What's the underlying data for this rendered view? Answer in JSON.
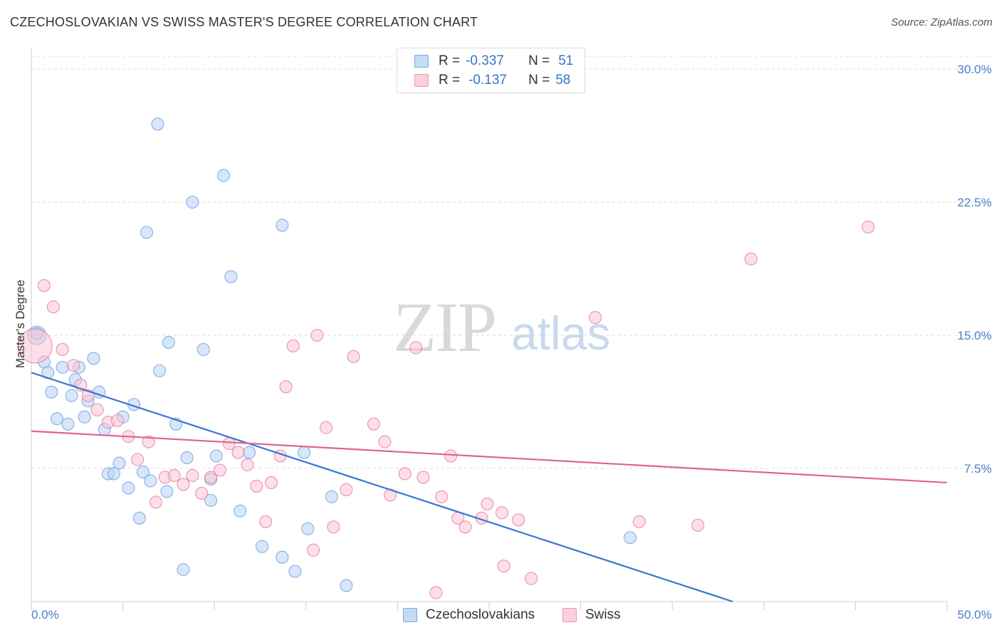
{
  "title": "CZECHOSLOVAKIAN VS SWISS MASTER'S DEGREE CORRELATION CHART",
  "source": "Source: ZipAtlas.com",
  "watermark": {
    "zip": "ZIP",
    "atlas": "atlas"
  },
  "legend_top": {
    "rows": [
      {
        "r_label": "R =",
        "r_value": "-0.337",
        "n_label": "N =",
        "n_value": "51",
        "color": "#aac8f0"
      },
      {
        "r_label": "R =",
        "r_value": "-0.137",
        "n_label": "N =",
        "n_value": "58",
        "color": "#f8bcd0"
      }
    ]
  },
  "legend_bottom": [
    {
      "label": "Czechoslovakians",
      "color": "#aac8f0"
    },
    {
      "label": "Swiss",
      "color": "#f8bcd0"
    }
  ],
  "chart_data": {
    "type": "scatter",
    "title": "CZECHOSLOVAKIAN VS SWISS MASTER'S DEGREE CORRELATION CHART",
    "xlabel": "",
    "ylabel": "Master's Degree",
    "xlim": [
      0,
      50
    ],
    "ylim": [
      0,
      30
    ],
    "x_tick_labels": [
      "0.0%",
      "50.0%"
    ],
    "y_ticks": [
      7.5,
      15.0,
      22.5,
      30.0
    ],
    "y_tick_labels": [
      "7.5%",
      "15.0%",
      "22.5%",
      "30.0%"
    ],
    "grid": true,
    "legend_position": "top-center",
    "series": [
      {
        "name": "Czechoslovakians",
        "color": "#6a9fe0",
        "fill": "#b8d2f4",
        "trend": {
          "x": [
            0,
            38.3
          ],
          "y": [
            12.9,
            0
          ]
        },
        "points": [
          [
            0.3,
            15.0
          ],
          [
            0.7,
            13.5
          ],
          [
            0.9,
            12.9
          ],
          [
            1.1,
            11.8
          ],
          [
            1.4,
            10.3
          ],
          [
            1.7,
            13.2
          ],
          [
            2.0,
            10.0
          ],
          [
            2.2,
            11.6
          ],
          [
            2.4,
            12.5
          ],
          [
            2.6,
            13.2
          ],
          [
            2.9,
            10.4
          ],
          [
            3.1,
            11.3
          ],
          [
            3.4,
            13.7
          ],
          [
            3.7,
            11.8
          ],
          [
            4.0,
            9.7
          ],
          [
            4.2,
            7.2
          ],
          [
            4.5,
            7.2
          ],
          [
            4.8,
            7.8
          ],
          [
            5.0,
            10.4
          ],
          [
            5.3,
            6.4
          ],
          [
            5.6,
            11.1
          ],
          [
            5.9,
            4.7
          ],
          [
            6.1,
            7.3
          ],
          [
            6.3,
            20.8
          ],
          [
            6.5,
            6.8
          ],
          [
            6.9,
            26.9
          ],
          [
            7.0,
            13.0
          ],
          [
            7.4,
            6.2
          ],
          [
            7.5,
            14.6
          ],
          [
            7.9,
            10.0
          ],
          [
            8.3,
            1.8
          ],
          [
            8.5,
            8.1
          ],
          [
            8.8,
            22.5
          ],
          [
            9.4,
            14.2
          ],
          [
            9.8,
            6.9
          ],
          [
            9.8,
            5.7
          ],
          [
            10.1,
            8.2
          ],
          [
            10.5,
            24.0
          ],
          [
            10.9,
            18.3
          ],
          [
            11.4,
            5.1
          ],
          [
            11.9,
            8.4
          ],
          [
            12.6,
            3.1
          ],
          [
            13.7,
            2.5
          ],
          [
            13.7,
            21.2
          ],
          [
            14.4,
            1.7
          ],
          [
            14.9,
            8.4
          ],
          [
            15.1,
            4.1
          ],
          [
            16.4,
            5.9
          ],
          [
            17.2,
            0.9
          ],
          [
            32.7,
            3.6
          ],
          [
            0.3,
            15.1
          ]
        ]
      },
      {
        "name": "Swiss",
        "color": "#e8789c",
        "fill": "#f9c4d6",
        "trend": {
          "x": [
            0,
            50
          ],
          "y": [
            9.6,
            6.7
          ]
        },
        "points": [
          [
            0.2,
            14.4
          ],
          [
            0.7,
            17.8
          ],
          [
            1.2,
            16.6
          ],
          [
            1.7,
            14.2
          ],
          [
            2.3,
            13.3
          ],
          [
            2.7,
            12.2
          ],
          [
            3.1,
            11.6
          ],
          [
            3.6,
            10.8
          ],
          [
            4.2,
            10.1
          ],
          [
            4.7,
            10.2
          ],
          [
            5.3,
            9.3
          ],
          [
            5.8,
            8.0
          ],
          [
            6.4,
            9.0
          ],
          [
            6.8,
            5.6
          ],
          [
            7.3,
            7.0
          ],
          [
            7.8,
            7.1
          ],
          [
            8.3,
            6.6
          ],
          [
            8.8,
            7.1
          ],
          [
            9.3,
            6.1
          ],
          [
            9.8,
            7.0
          ],
          [
            10.3,
            7.4
          ],
          [
            10.8,
            8.9
          ],
          [
            11.3,
            8.4
          ],
          [
            11.8,
            7.7
          ],
          [
            12.3,
            6.5
          ],
          [
            12.8,
            4.5
          ],
          [
            13.1,
            6.7
          ],
          [
            13.6,
            8.2
          ],
          [
            13.9,
            12.1
          ],
          [
            14.3,
            14.4
          ],
          [
            15.4,
            2.9
          ],
          [
            15.6,
            15.0
          ],
          [
            16.1,
            9.8
          ],
          [
            16.5,
            4.2
          ],
          [
            17.2,
            6.3
          ],
          [
            17.6,
            13.8
          ],
          [
            18.7,
            10.0
          ],
          [
            19.3,
            9.0
          ],
          [
            19.6,
            6.0
          ],
          [
            20.4,
            7.2
          ],
          [
            21.0,
            14.3
          ],
          [
            21.4,
            7.0
          ],
          [
            22.1,
            0.5
          ],
          [
            22.4,
            5.9
          ],
          [
            22.9,
            8.2
          ],
          [
            23.3,
            4.7
          ],
          [
            23.7,
            4.2
          ],
          [
            24.6,
            4.7
          ],
          [
            24.9,
            5.5
          ],
          [
            25.7,
            5.0
          ],
          [
            25.8,
            2.0
          ],
          [
            26.6,
            4.6
          ],
          [
            27.3,
            1.3
          ],
          [
            30.8,
            16.0
          ],
          [
            33.2,
            4.5
          ],
          [
            36.4,
            4.3
          ],
          [
            39.3,
            19.3
          ],
          [
            45.7,
            21.1
          ]
        ]
      }
    ]
  }
}
